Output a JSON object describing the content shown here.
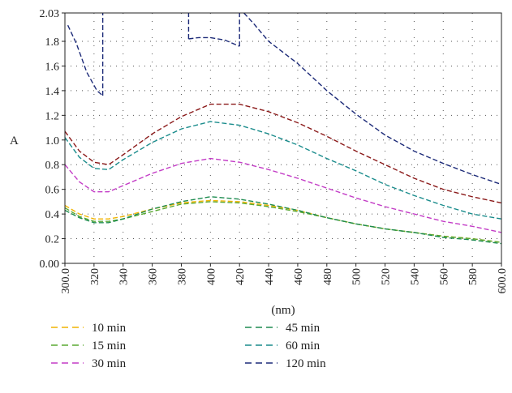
{
  "chart_data": {
    "type": "line",
    "title": "",
    "xlabel": "(nm)",
    "ylabel": "A",
    "xlim": [
      300,
      600
    ],
    "ylim": [
      0,
      2.03
    ],
    "x_ticks": [
      "300.0",
      "320",
      "340",
      "360",
      "380",
      "400",
      "420",
      "440",
      "460",
      "480",
      "500",
      "520",
      "540",
      "560",
      "580",
      "600.0"
    ],
    "y_ticks": [
      "0.00",
      "0.2",
      "0.4",
      "0.6",
      "0.8",
      "1.0",
      "1.2",
      "1.4",
      "1.6",
      "1.8",
      "2.03"
    ],
    "grid": true,
    "legend_position": "bottom",
    "series": [
      {
        "name": "10 min",
        "color": "#f0b400",
        "points": [
          [
            300,
            0.47
          ],
          [
            310,
            0.4
          ],
          [
            320,
            0.36
          ],
          [
            330,
            0.36
          ],
          [
            340,
            0.38
          ],
          [
            360,
            0.44
          ],
          [
            380,
            0.49
          ],
          [
            400,
            0.51
          ],
          [
            420,
            0.5
          ],
          [
            440,
            0.47
          ],
          [
            460,
            0.43
          ],
          [
            480,
            0.37
          ],
          [
            500,
            0.32
          ],
          [
            520,
            0.28
          ],
          [
            540,
            0.25
          ],
          [
            560,
            0.22
          ],
          [
            580,
            0.2
          ],
          [
            600,
            0.17
          ]
        ]
      },
      {
        "name": "15 min",
        "color": "#5aa832",
        "points": [
          [
            300,
            0.45
          ],
          [
            310,
            0.38
          ],
          [
            320,
            0.34
          ],
          [
            330,
            0.34
          ],
          [
            340,
            0.36
          ],
          [
            360,
            0.42
          ],
          [
            380,
            0.48
          ],
          [
            400,
            0.5
          ],
          [
            420,
            0.49
          ],
          [
            440,
            0.46
          ],
          [
            460,
            0.42
          ],
          [
            480,
            0.37
          ],
          [
            500,
            0.32
          ],
          [
            520,
            0.28
          ],
          [
            540,
            0.25
          ],
          [
            560,
            0.22
          ],
          [
            580,
            0.2
          ],
          [
            600,
            0.17
          ]
        ]
      },
      {
        "name": "30 min",
        "color": "#c33cc6",
        "points": [
          [
            300,
            0.8
          ],
          [
            310,
            0.66
          ],
          [
            320,
            0.58
          ],
          [
            330,
            0.58
          ],
          [
            340,
            0.63
          ],
          [
            360,
            0.73
          ],
          [
            380,
            0.81
          ],
          [
            400,
            0.85
          ],
          [
            420,
            0.82
          ],
          [
            440,
            0.76
          ],
          [
            460,
            0.69
          ],
          [
            480,
            0.61
          ],
          [
            500,
            0.53
          ],
          [
            520,
            0.46
          ],
          [
            540,
            0.4
          ],
          [
            560,
            0.34
          ],
          [
            580,
            0.3
          ],
          [
            600,
            0.25
          ]
        ]
      },
      {
        "name": "45 min",
        "color": "#1e8c50",
        "points": [
          [
            300,
            0.43
          ],
          [
            310,
            0.37
          ],
          [
            320,
            0.33
          ],
          [
            330,
            0.33
          ],
          [
            340,
            0.36
          ],
          [
            360,
            0.44
          ],
          [
            380,
            0.5
          ],
          [
            400,
            0.54
          ],
          [
            420,
            0.52
          ],
          [
            440,
            0.48
          ],
          [
            460,
            0.43
          ],
          [
            480,
            0.37
          ],
          [
            500,
            0.32
          ],
          [
            520,
            0.28
          ],
          [
            540,
            0.25
          ],
          [
            560,
            0.21
          ],
          [
            580,
            0.19
          ],
          [
            600,
            0.16
          ]
        ]
      },
      {
        "name": "60 min",
        "color": "#1a8c8c",
        "points": [
          [
            300,
            1.02
          ],
          [
            310,
            0.86
          ],
          [
            320,
            0.77
          ],
          [
            330,
            0.76
          ],
          [
            340,
            0.84
          ],
          [
            360,
            0.98
          ],
          [
            380,
            1.09
          ],
          [
            400,
            1.15
          ],
          [
            420,
            1.12
          ],
          [
            440,
            1.05
          ],
          [
            460,
            0.96
          ],
          [
            480,
            0.85
          ],
          [
            500,
            0.75
          ],
          [
            520,
            0.64
          ],
          [
            540,
            0.55
          ],
          [
            560,
            0.47
          ],
          [
            580,
            0.4
          ],
          [
            600,
            0.36
          ]
        ]
      },
      {
        "name": "120 min",
        "color": "#1c2a78",
        "points": []
      }
    ],
    "extra_unlabeled_series": [
      {
        "color": "#8b1a1a",
        "points": [
          [
            300,
            1.07
          ],
          [
            310,
            0.91
          ],
          [
            320,
            0.82
          ],
          [
            330,
            0.8
          ],
          [
            340,
            0.88
          ],
          [
            360,
            1.05
          ],
          [
            380,
            1.19
          ],
          [
            400,
            1.29
          ],
          [
            420,
            1.29
          ],
          [
            440,
            1.23
          ],
          [
            460,
            1.14
          ],
          [
            480,
            1.03
          ],
          [
            500,
            0.91
          ],
          [
            520,
            0.8
          ],
          [
            540,
            0.69
          ],
          [
            560,
            0.6
          ],
          [
            580,
            0.54
          ],
          [
            600,
            0.49
          ]
        ]
      },
      {
        "color": "#1c2a78",
        "points": [
          [
            302,
            1.93
          ],
          [
            308,
            1.78
          ],
          [
            315,
            1.55
          ],
          [
            322,
            1.4
          ],
          [
            325,
            1.37
          ],
          [
            326,
            1.36
          ]
        ]
      },
      {
        "color": "#1c2a78",
        "points": [
          [
            385,
            1.82
          ],
          [
            392,
            1.83
          ],
          [
            400,
            1.83
          ],
          [
            410,
            1.81
          ],
          [
            418,
            1.77
          ],
          [
            420,
            1.76
          ]
        ]
      },
      {
        "color": "#1c2a78",
        "points": [
          [
            423,
            2.03
          ],
          [
            430,
            1.94
          ],
          [
            440,
            1.8
          ],
          [
            460,
            1.62
          ],
          [
            480,
            1.4
          ],
          [
            500,
            1.21
          ],
          [
            520,
            1.04
          ],
          [
            540,
            0.91
          ],
          [
            560,
            0.81
          ],
          [
            580,
            0.72
          ],
          [
            600,
            0.64
          ]
        ]
      }
    ]
  }
}
